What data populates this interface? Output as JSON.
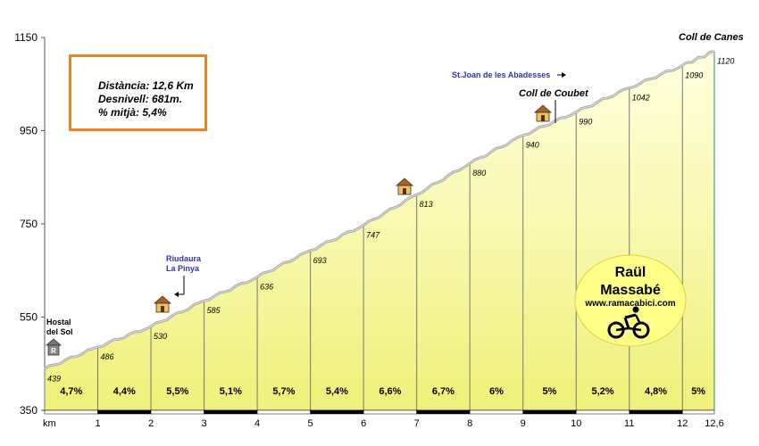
{
  "info_box": {
    "distance": "Distància: 12,6 Km",
    "elevation_gain": "Desnivell: 681m.",
    "avg_grade": "% mitjà: 5,4%",
    "border_color": "#f08020"
  },
  "author_badge": {
    "name_line1": "Raül",
    "name_line2": "Massabé",
    "website": "www.ramacabici.com",
    "fill_color": "#ffff88",
    "icon": "cyclist-icon"
  },
  "chart_data": {
    "type": "area",
    "title": "",
    "xlabel": "km",
    "ylabel": "",
    "ylim": [
      350,
      1150
    ],
    "xlim": [
      0,
      12.6
    ],
    "y_ticks": [
      "350",
      "550",
      "750",
      "950",
      "1150"
    ],
    "x_ticks": [
      {
        "x": 0,
        "label": "km"
      },
      {
        "x": 1,
        "label": "1"
      },
      {
        "x": 2,
        "label": "2"
      },
      {
        "x": 3,
        "label": "3"
      },
      {
        "x": 4,
        "label": "4"
      },
      {
        "x": 5,
        "label": "5"
      },
      {
        "x": 6,
        "label": "6"
      },
      {
        "x": 7,
        "label": "7"
      },
      {
        "x": 8,
        "label": "8"
      },
      {
        "x": 9,
        "label": "9"
      },
      {
        "x": 10,
        "label": "10"
      },
      {
        "x": 11,
        "label": "11"
      },
      {
        "x": 12,
        "label": "12"
      },
      {
        "x": 12.6,
        "label": "12,6"
      }
    ],
    "grid": false,
    "fill_color": "#ffffa0",
    "profile": [
      {
        "km": 0,
        "alt": 439,
        "label": "439"
      },
      {
        "km": 1,
        "alt": 486,
        "label": "486"
      },
      {
        "km": 2,
        "alt": 530,
        "label": "530"
      },
      {
        "km": 3,
        "alt": 585,
        "label": "585"
      },
      {
        "km": 4,
        "alt": 636,
        "label": "636"
      },
      {
        "km": 5,
        "alt": 693,
        "label": "693"
      },
      {
        "km": 6,
        "alt": 747,
        "label": "747"
      },
      {
        "km": 7,
        "alt": 813,
        "label": "813"
      },
      {
        "km": 8,
        "alt": 880,
        "label": "880"
      },
      {
        "km": 9,
        "alt": 940,
        "label": "940"
      },
      {
        "km": 10,
        "alt": 990,
        "label": "990"
      },
      {
        "km": 11,
        "alt": 1042,
        "label": "1042"
      },
      {
        "km": 12,
        "alt": 1090,
        "label": "1090"
      },
      {
        "km": 12.6,
        "alt": 1120,
        "label": "1120"
      }
    ],
    "gradients": [
      "4,7%",
      "4,4%",
      "5,5%",
      "5,1%",
      "5,7%",
      "5,4%",
      "6,6%",
      "6,7%",
      "6%",
      "5%",
      "5,2%",
      "4,8%",
      "5%"
    ],
    "places": [
      {
        "name": "Hostal",
        "name2": "del Sol",
        "km": 0,
        "icon": "hostal-icon"
      },
      {
        "name": "Riudaura",
        "name2": "La Pinya",
        "km": 2.3,
        "icon": "house-icon"
      },
      {
        "name": "",
        "name2": "",
        "km": 7.2,
        "icon": "house-icon"
      },
      {
        "name": "Coll de Coubet",
        "name2": "",
        "km": 9.6,
        "icon": "house-icon"
      },
      {
        "name": "St.Joan de les Abadesses",
        "name2": "",
        "km": 9.6,
        "icon": "arrow-right-icon"
      },
      {
        "name": "Coll de Canes",
        "name2": "",
        "km": 12.6,
        "icon": ""
      }
    ]
  }
}
